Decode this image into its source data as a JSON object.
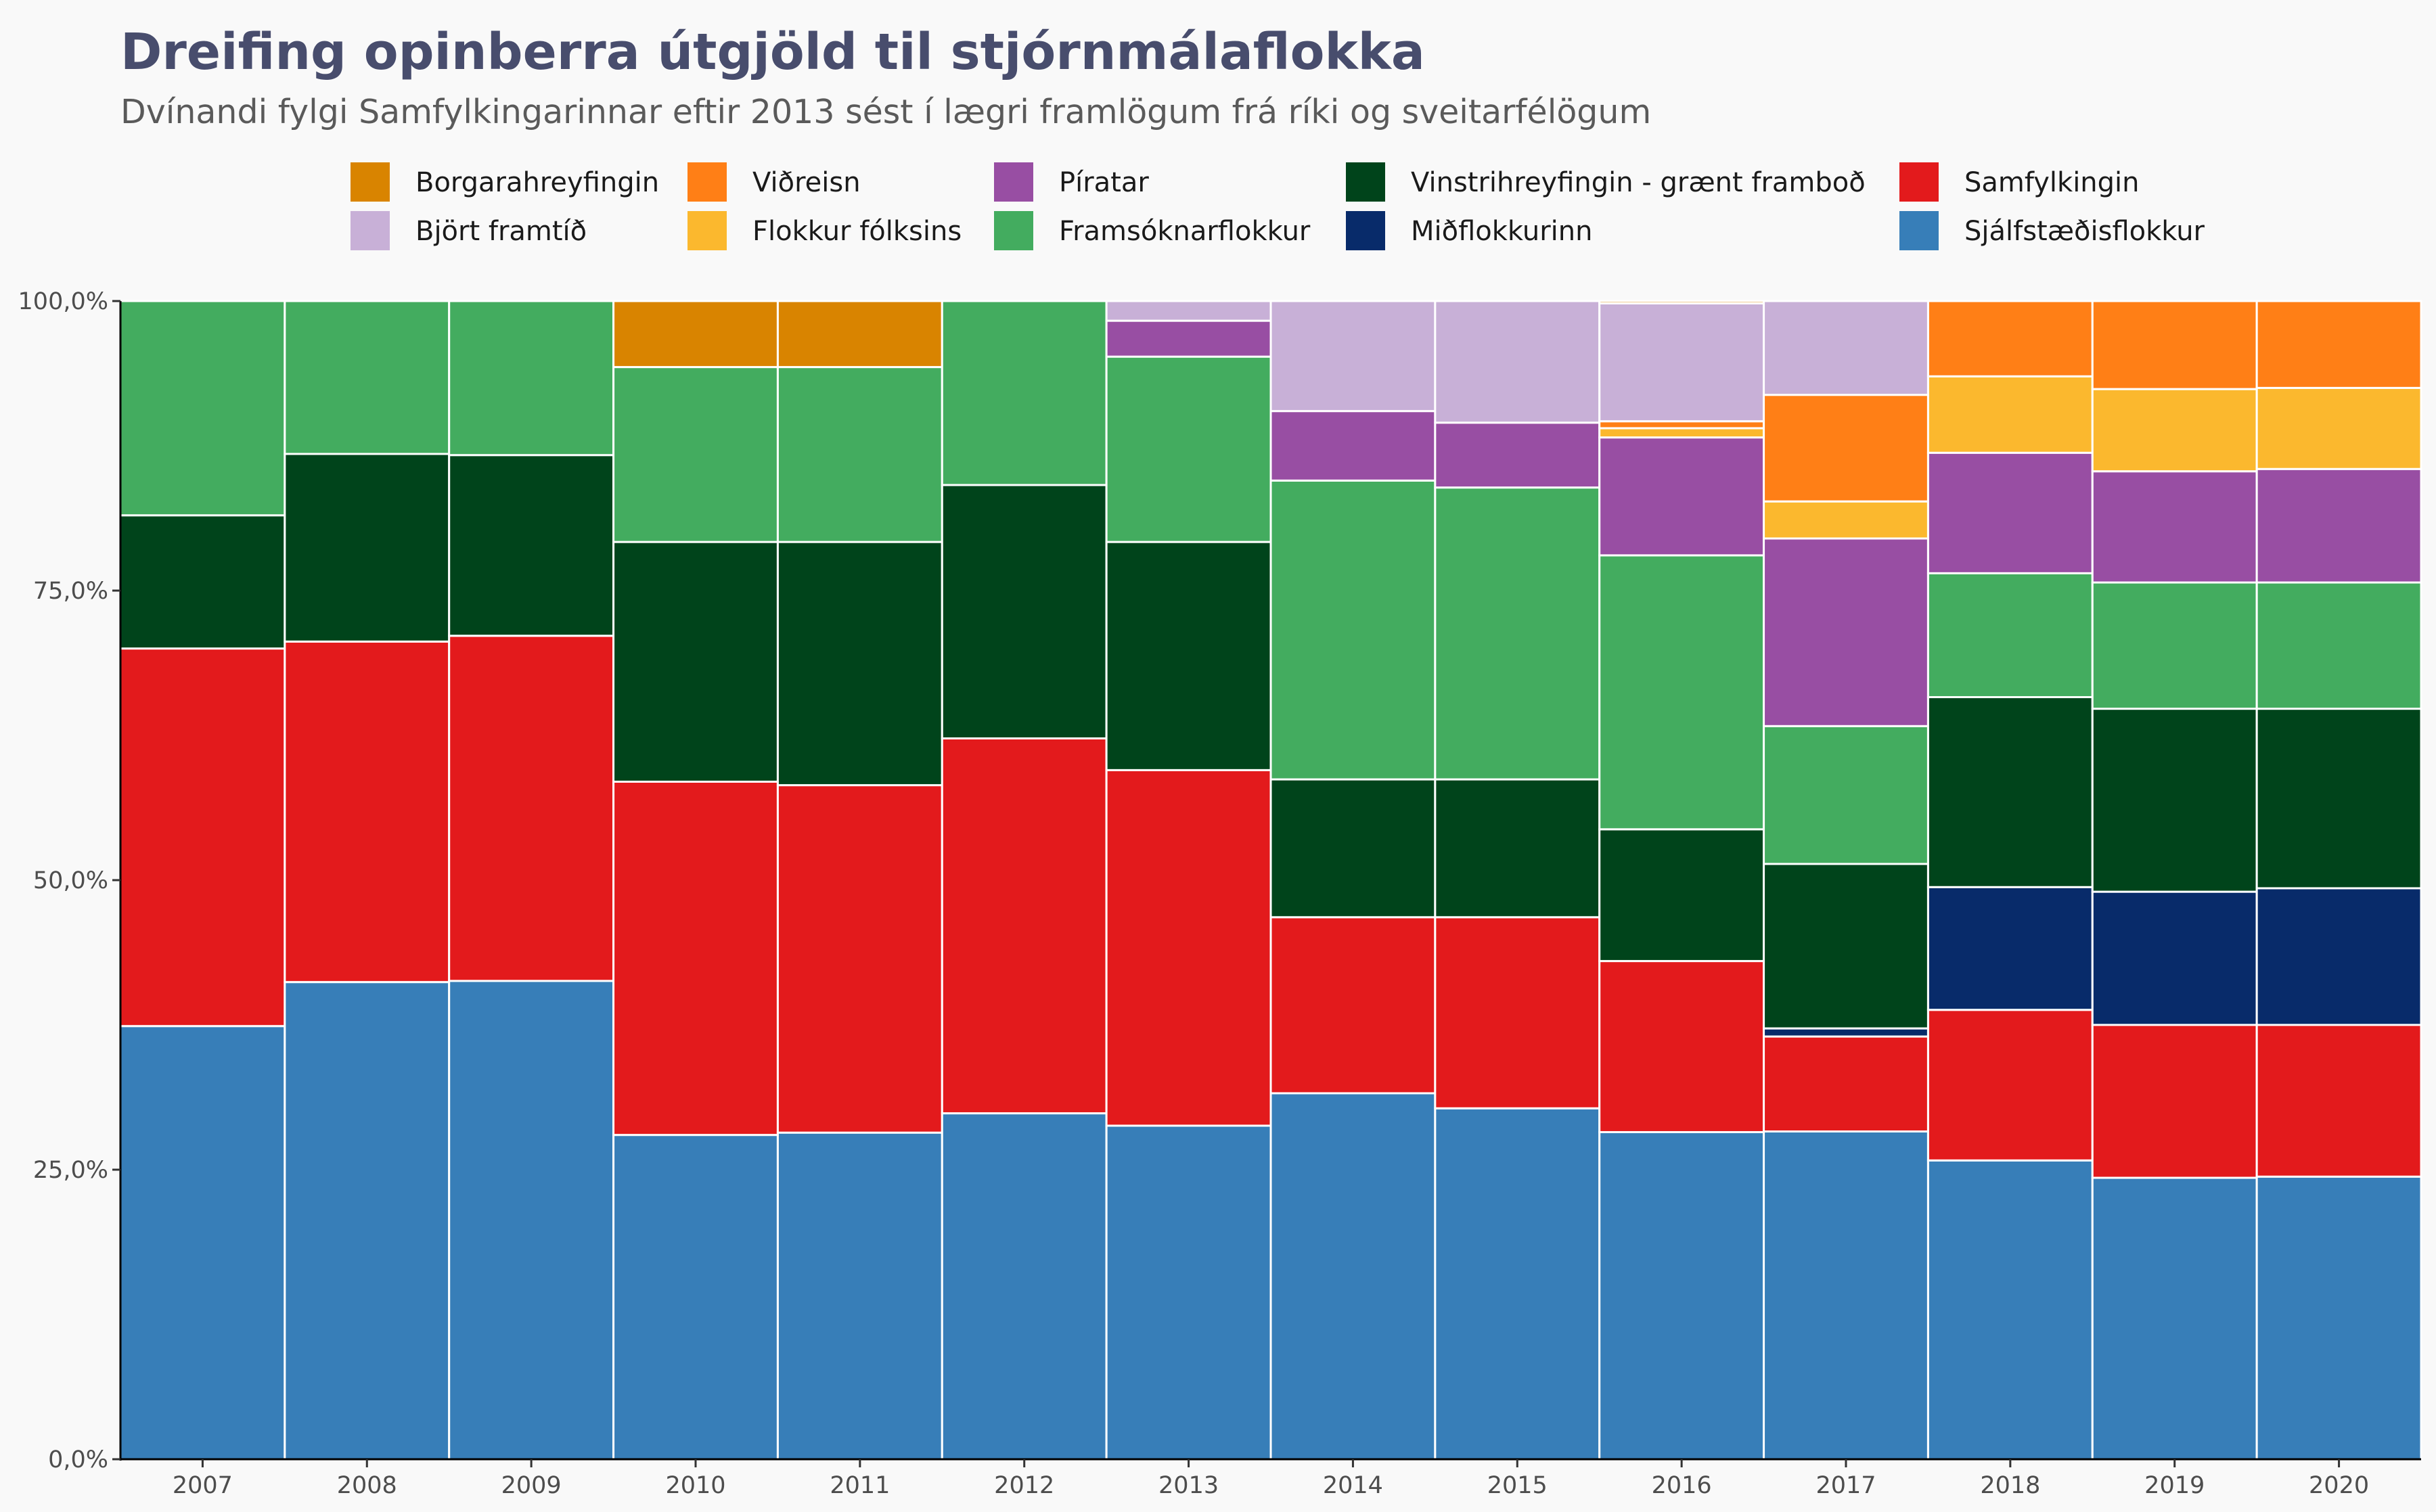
{
  "chart_data": {
    "type": "bar",
    "stacked": true,
    "normalized": true,
    "title": "Dreifing opinberra útgjöld til stjórnmálaflokka",
    "subtitle": "Dvínandi fylgi Samfylkingarinnar eftir 2013 sést í lægri framlögum frá ríki og sveitarfélögum",
    "xlabel": "",
    "ylabel": "",
    "ylim": [
      0,
      100
    ],
    "y_ticks": [
      "0,0%",
      "25,0%",
      "50,0%",
      "75,0%",
      "100,0%"
    ],
    "grid": false,
    "legend_position": "top",
    "categories": [
      "2007",
      "2008",
      "2009",
      "2010",
      "2011",
      "2012",
      "2013",
      "2014",
      "2015",
      "2016",
      "2017",
      "2018",
      "2019",
      "2020"
    ],
    "legend": [
      {
        "name": "Borgarahreyfingin",
        "color": "#d98400"
      },
      {
        "name": "Björt framtíð",
        "color": "#c8b0d7"
      },
      {
        "name": "Viðreisn",
        "color": "#ff7f16"
      },
      {
        "name": "Flokkur fólksins",
        "color": "#fbb82e"
      },
      {
        "name": "Píratar",
        "color": "#984ea3"
      },
      {
        "name": "Framsóknarflokkur",
        "color": "#43ac5f"
      },
      {
        "name": "Vinstrihreyfingin - grænt framboð",
        "color": "#00441b"
      },
      {
        "name": "Miðflokkurinn",
        "color": "#082b6a"
      },
      {
        "name": "Samfylkingin",
        "color": "#e31a1c"
      },
      {
        "name": "Sjálfstæðisflokkur",
        "color": "#377eb8"
      }
    ],
    "series": [
      {
        "name": "Sjálfstæðisflokkur",
        "color": "#377eb8",
        "values": [
          37.4,
          41.2,
          41.3,
          28.0,
          28.2,
          29.9,
          28.8,
          31.6,
          30.3,
          28.3,
          28.3,
          25.8,
          24.3,
          24.4
        ]
      },
      {
        "name": "Samfylkingin",
        "color": "#e31a1c",
        "values": [
          32.6,
          29.4,
          29.8,
          30.5,
          30.0,
          32.4,
          30.7,
          15.2,
          16.5,
          14.8,
          8.2,
          13.0,
          13.2,
          13.1
        ]
      },
      {
        "name": "Miðflokkurinn",
        "color": "#082b6a",
        "values": [
          0,
          0,
          0,
          0,
          0,
          0,
          0,
          0,
          0,
          0,
          0.7,
          10.6,
          11.5,
          11.8
        ]
      },
      {
        "name": "Vinstrihreyfingin - grænt framboð",
        "color": "#00441b",
        "values": [
          11.5,
          16.2,
          15.6,
          20.7,
          21.0,
          21.9,
          19.7,
          11.9,
          11.9,
          11.4,
          14.2,
          16.4,
          15.8,
          15.5
        ]
      },
      {
        "name": "Framsóknarflokkur",
        "color": "#43ac5f",
        "values": [
          18.5,
          13.2,
          13.3,
          15.1,
          15.1,
          15.9,
          16.0,
          25.8,
          25.2,
          23.7,
          11.9,
          10.7,
          10.9,
          10.9
        ]
      },
      {
        "name": "Píratar",
        "color": "#984ea3",
        "values": [
          0,
          0,
          0,
          0,
          0,
          0,
          3.1,
          6.0,
          5.6,
          10.2,
          16.2,
          10.4,
          9.6,
          9.8
        ]
      },
      {
        "name": "Flokkur fólksins",
        "color": "#fbb82e",
        "values": [
          0,
          0,
          0,
          0,
          0,
          0,
          0,
          0,
          0,
          0.8,
          3.2,
          6.6,
          7.1,
          7.0
        ]
      },
      {
        "name": "Viðreisn",
        "color": "#ff7f16",
        "values": [
          0,
          0,
          0,
          0,
          0,
          0,
          0,
          0,
          0,
          0.6,
          9.2,
          6.5,
          7.6,
          7.5
        ]
      },
      {
        "name": "Björt framtíð",
        "color": "#c8b0d7",
        "values": [
          0,
          0,
          0,
          0,
          0,
          0,
          1.7,
          9.5,
          10.5,
          10.2,
          8.1,
          0,
          0,
          0
        ]
      },
      {
        "name": "Borgarahreyfingin",
        "color": "#d98400",
        "values": [
          0,
          0,
          0,
          5.7,
          5.7,
          0,
          0,
          0,
          0,
          0.2,
          0,
          0,
          0,
          0
        ]
      }
    ]
  }
}
